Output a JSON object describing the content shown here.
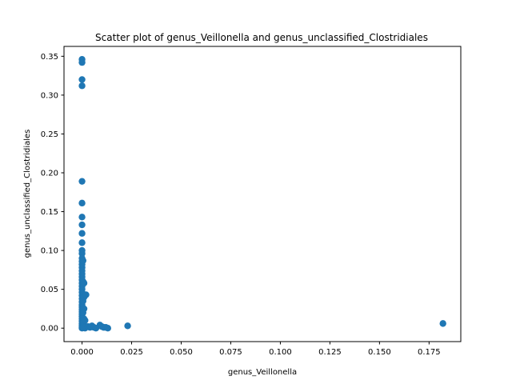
{
  "chart_data": {
    "type": "scatter",
    "title": "Scatter plot of genus_Veillonella and genus_unclassified_Clostridiales",
    "xlabel": "genus_Veillonella",
    "ylabel": "genus_unclassified_Clostridiales",
    "xlim": [
      -0.0091,
      0.191
    ],
    "ylim": [
      -0.0173,
      0.3627
    ],
    "xticks": [
      0.0,
      0.025,
      0.05,
      0.075,
      0.1,
      0.125,
      0.15,
      0.175
    ],
    "xtick_labels": [
      "0.000",
      "0.025",
      "0.050",
      "0.075",
      "0.100",
      "0.125",
      "0.150",
      "0.175"
    ],
    "yticks": [
      0.0,
      0.05,
      0.1,
      0.15,
      0.2,
      0.25,
      0.3,
      0.35
    ],
    "ytick_labels": [
      "0.00",
      "0.05",
      "0.10",
      "0.15",
      "0.20",
      "0.25",
      "0.30",
      "0.35"
    ],
    "grid": false,
    "marker_color": "#1f77b4",
    "points": [
      [
        0.0,
        0.346
      ],
      [
        0.0,
        0.342
      ],
      [
        0.0,
        0.32
      ],
      [
        0.0,
        0.312
      ],
      [
        0.0,
        0.189
      ],
      [
        0.0,
        0.161
      ],
      [
        0.0,
        0.143
      ],
      [
        0.0,
        0.133
      ],
      [
        0.0,
        0.122
      ],
      [
        0.0,
        0.11
      ],
      [
        0.0,
        0.1
      ],
      [
        0.0,
        0.096
      ],
      [
        0.0,
        0.09
      ],
      [
        0.0,
        0.086
      ],
      [
        0.0,
        0.082
      ],
      [
        0.0,
        0.078
      ],
      [
        0.0,
        0.074
      ],
      [
        0.0,
        0.07
      ],
      [
        0.0,
        0.066
      ],
      [
        0.0,
        0.062
      ],
      [
        0.0,
        0.058
      ],
      [
        0.0,
        0.054
      ],
      [
        0.0,
        0.05
      ],
      [
        0.0,
        0.046
      ],
      [
        0.0,
        0.042
      ],
      [
        0.0,
        0.038
      ],
      [
        0.0,
        0.034
      ],
      [
        0.0,
        0.03
      ],
      [
        0.0,
        0.027
      ],
      [
        0.0,
        0.024
      ],
      [
        0.0,
        0.021
      ],
      [
        0.0,
        0.018
      ],
      [
        0.0,
        0.015
      ],
      [
        0.0,
        0.012
      ],
      [
        0.0,
        0.009
      ],
      [
        0.0,
        0.006
      ],
      [
        0.0,
        0.004
      ],
      [
        0.0,
        0.002
      ],
      [
        0.0,
        0.001
      ],
      [
        0.0,
        0.0
      ],
      [
        0.0005,
        0.087
      ],
      [
        0.0005,
        0.06
      ],
      [
        0.0005,
        0.035
      ],
      [
        0.0005,
        0.02
      ],
      [
        0.0005,
        0.008
      ],
      [
        0.0005,
        0.001
      ],
      [
        0.001,
        0.058
      ],
      [
        0.001,
        0.04
      ],
      [
        0.001,
        0.025
      ],
      [
        0.001,
        0.012
      ],
      [
        0.001,
        0.003
      ],
      [
        0.0015,
        0.042
      ],
      [
        0.0015,
        0.01
      ],
      [
        0.0015,
        0.0
      ],
      [
        0.002,
        0.043
      ],
      [
        0.002,
        0.002
      ],
      [
        0.003,
        0.002
      ],
      [
        0.004,
        0.001
      ],
      [
        0.005,
        0.003
      ],
      [
        0.006,
        0.001
      ],
      [
        0.007,
        0.0
      ],
      [
        0.009,
        0.004
      ],
      [
        0.01,
        0.002
      ],
      [
        0.011,
        0.001
      ],
      [
        0.012,
        0.001
      ],
      [
        0.013,
        0.0
      ],
      [
        0.023,
        0.003
      ],
      [
        0.182,
        0.006
      ]
    ]
  }
}
